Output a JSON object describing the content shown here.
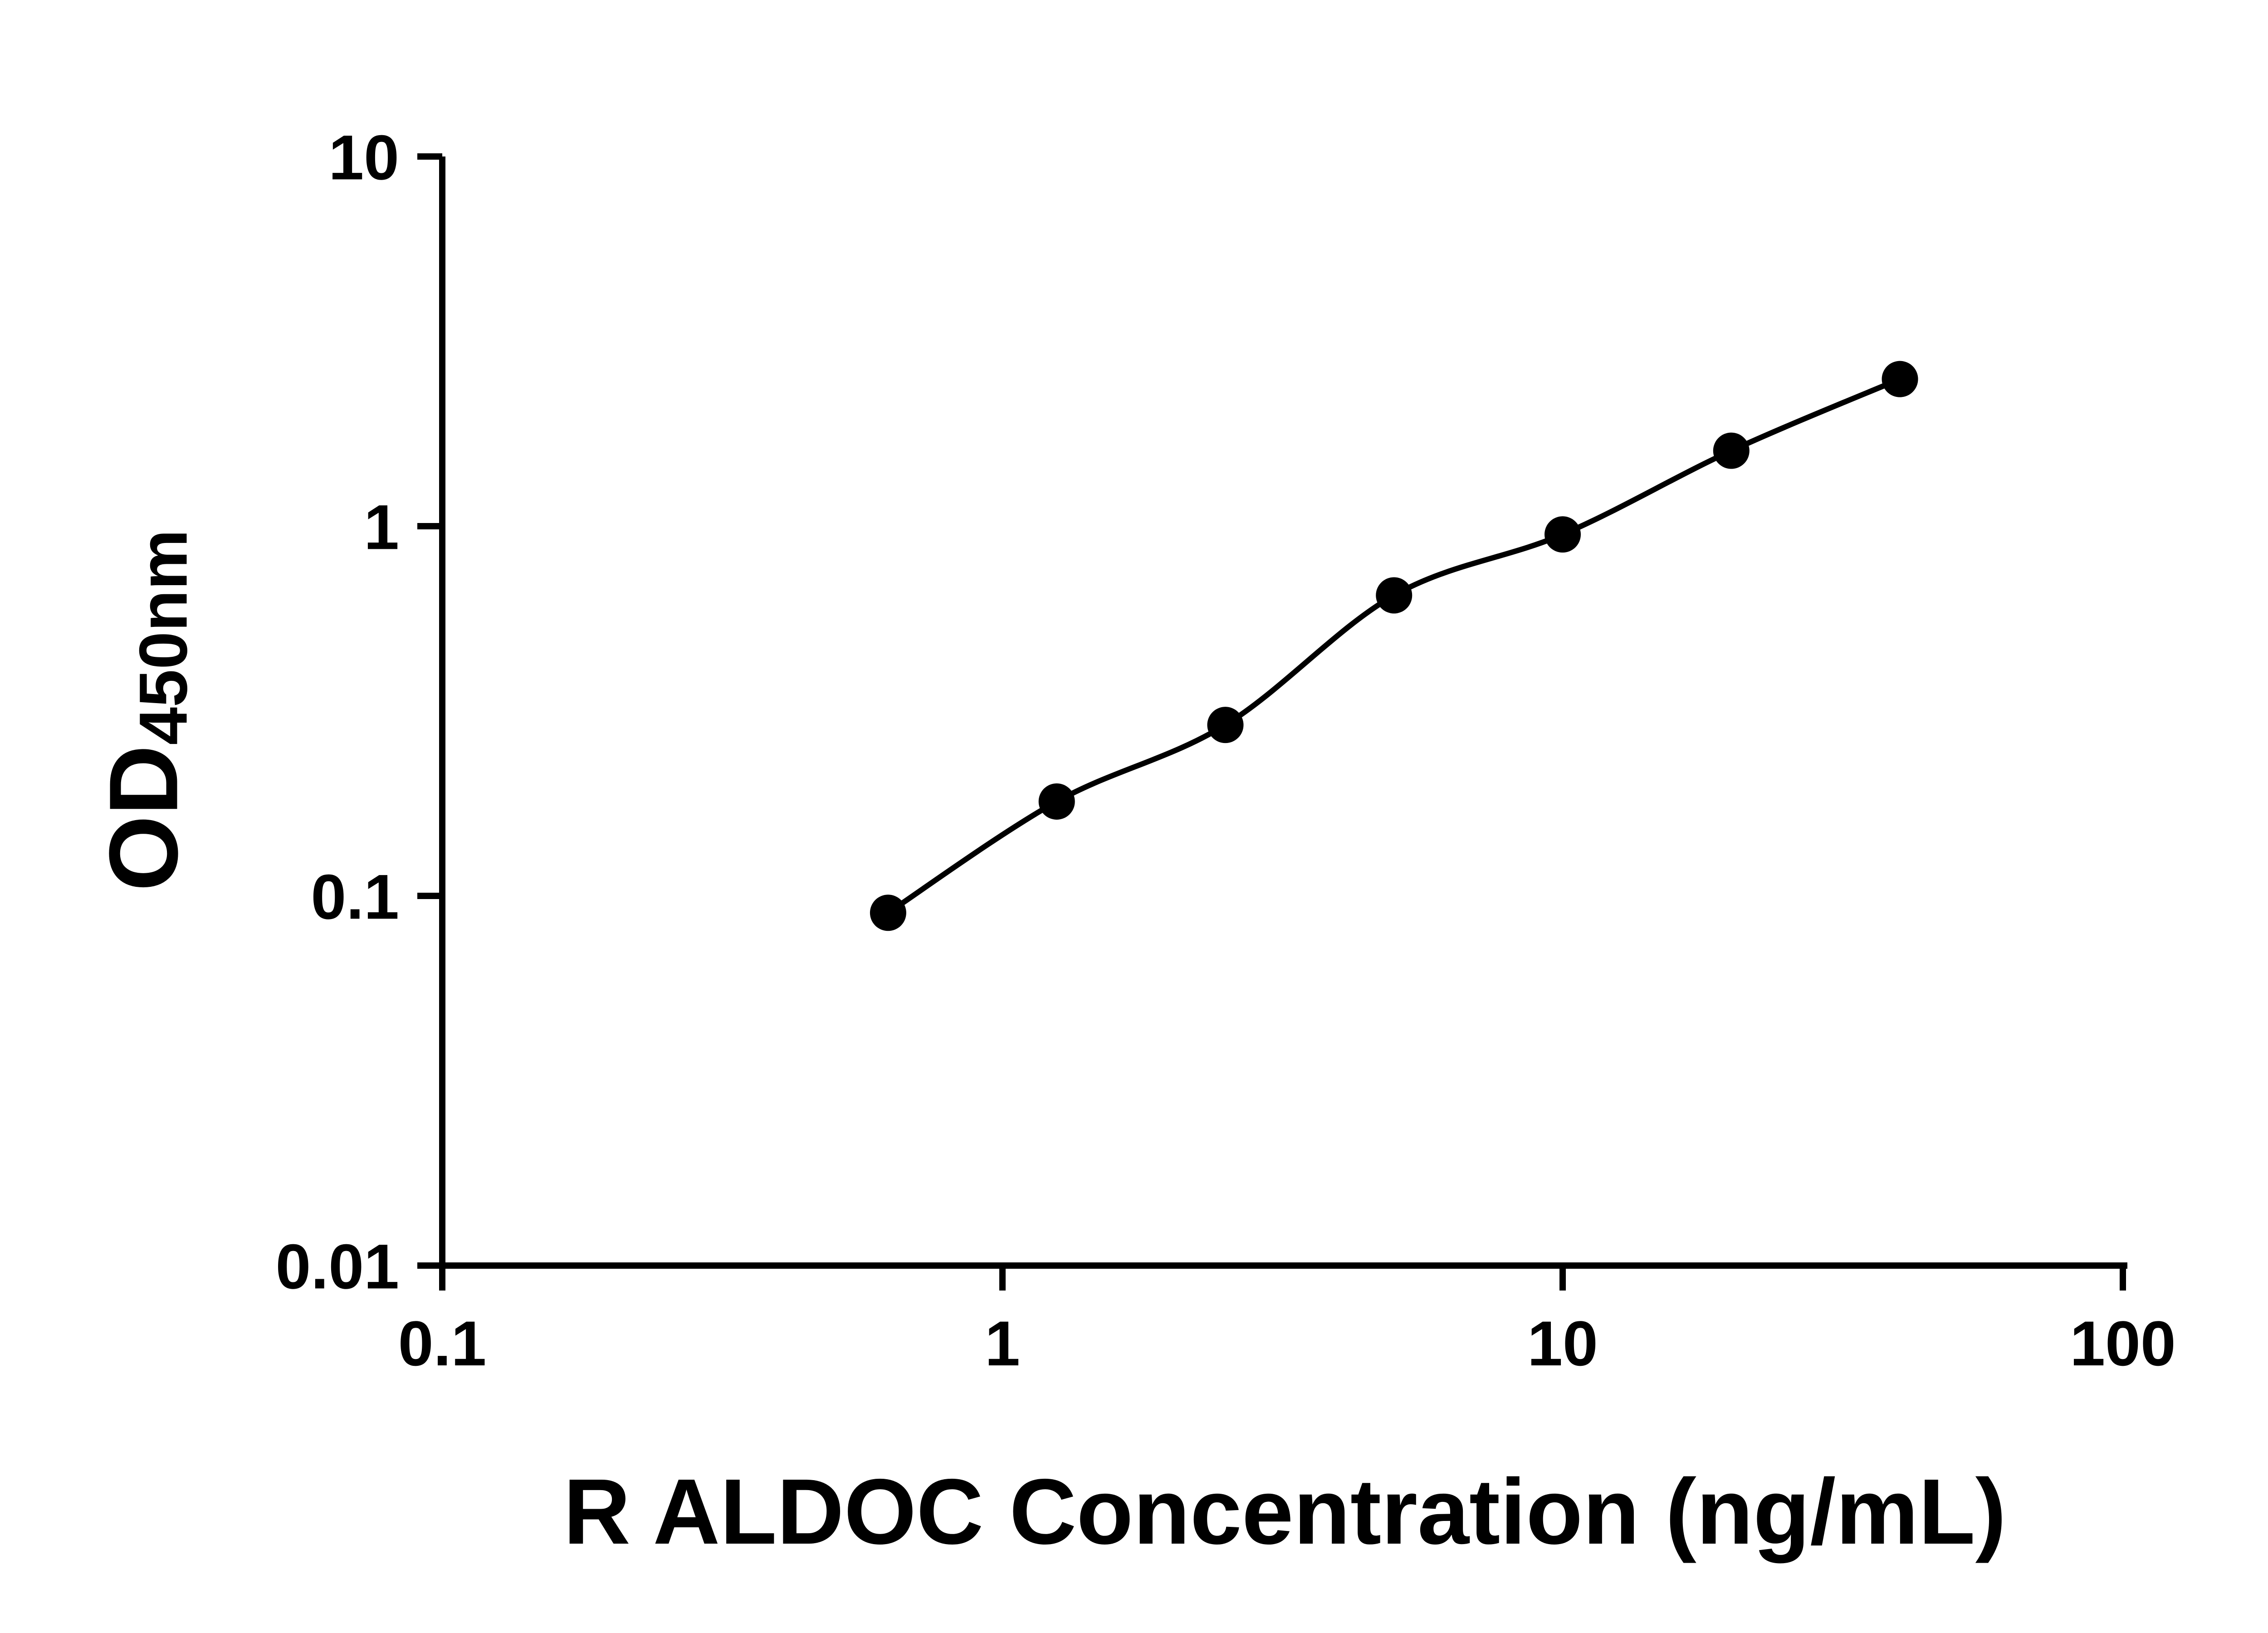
{
  "figure": {
    "background_color": "#ffffff",
    "axis_color": "#000000",
    "point_color": "#000000",
    "curve_color": "#000000"
  },
  "chart_data": {
    "type": "scatter",
    "subtype": "standard-curve-with-fit-line",
    "title": "",
    "xlabel": "R ALDOC Concentration (ng/mL)",
    "ylabel_main": "OD",
    "ylabel_sub": "450nm",
    "x_scale": "log",
    "y_scale": "log",
    "xlim": [
      0.1,
      100
    ],
    "ylim": [
      0.01,
      10
    ],
    "x_ticks": [
      "0.1",
      "1",
      "10",
      "100"
    ],
    "y_ticks": [
      "10",
      "1",
      "0.1",
      "0.01"
    ],
    "grid": false,
    "legend": "none",
    "x": [
      0.625,
      1.25,
      2.5,
      5,
      10,
      20,
      40
    ],
    "y": [
      0.09,
      0.18,
      0.29,
      0.65,
      0.95,
      1.6,
      2.5
    ]
  }
}
